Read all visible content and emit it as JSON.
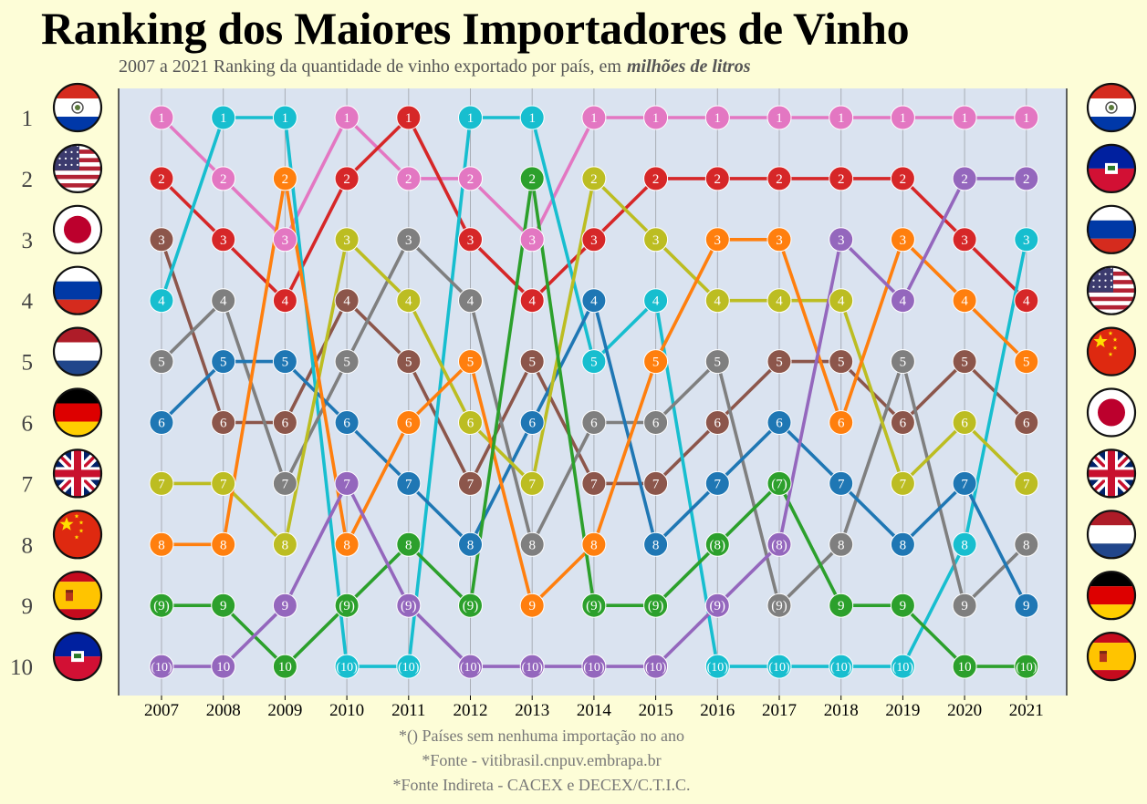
{
  "title": "Ranking dos Maiores Importadores de Vinho",
  "subtitle_text": "2007 a 2021 Ranking da quantidade de vinho exportado por país, em",
  "subtitle_emph": "milhões de litros",
  "footnotes": [
    "*() Países sem nenhuma importação no ano",
    "*Fonte - vitibrasil.cnpuv.embrapa.br",
    "*Fonte Indireta - CACEX e DECEX/C.T.I.C."
  ],
  "colors": {
    "background": "#fdfdd7",
    "plot_background": "#dae3f0",
    "pink": "#e377c2",
    "red": "#d62728",
    "brown": "#8c564b",
    "cyan": "#17becf",
    "gray": "#7f7f7f",
    "blue": "#1f77b4",
    "olive": "#bcbd22",
    "orange": "#ff7f0e",
    "green": "#2ca02c",
    "purple": "#9467bd"
  },
  "chart_data": {
    "type": "line",
    "x": [
      "2007",
      "2008",
      "2009",
      "2010",
      "2011",
      "2012",
      "2013",
      "2014",
      "2015",
      "2016",
      "2017",
      "2018",
      "2019",
      "2020",
      "2021"
    ],
    "y_ticks": [
      "1",
      "2",
      "3",
      "4",
      "5",
      "6",
      "7",
      "8",
      "9",
      "10"
    ],
    "ylim": [
      1,
      10
    ],
    "y_inverted": true,
    "grid": "vertical",
    "left_flags": [
      "paraguay-flag",
      "usa-flag",
      "japan-flag",
      "russia-flag",
      "netherlands-flag",
      "germany-flag",
      "uk-flag",
      "china-flag",
      "spain-flag",
      "haiti-flag"
    ],
    "right_flags": [
      "paraguay-flag",
      "haiti-flag",
      "russia-flag",
      "usa-flag",
      "china-flag",
      "japan-flag",
      "uk-flag",
      "netherlands-flag",
      "germany-flag",
      "spain-flag"
    ],
    "series": [
      {
        "color": "pink",
        "ranks": [
          1,
          2,
          3,
          1,
          2,
          2,
          3,
          1,
          1,
          1,
          1,
          1,
          1,
          1,
          1
        ],
        "labels": [
          "1",
          "2",
          "3",
          "1",
          "2",
          "2",
          "3",
          "1",
          "1",
          "1",
          "1",
          "1",
          "1",
          "1",
          "1"
        ]
      },
      {
        "color": "red",
        "ranks": [
          2,
          3,
          4,
          2,
          1,
          3,
          4,
          3,
          2,
          2,
          2,
          2,
          2,
          3,
          4
        ],
        "labels": [
          "2",
          "3",
          "4",
          "2",
          "1",
          "3",
          "4",
          "3",
          "2",
          "2",
          "2",
          "2",
          "2",
          "3",
          "4"
        ]
      },
      {
        "color": "brown",
        "ranks": [
          3,
          6,
          6,
          4,
          5,
          7,
          5,
          7,
          7,
          6,
          5,
          5,
          6,
          5,
          6
        ],
        "labels": [
          "3",
          "6",
          "6",
          "4",
          "5",
          "7",
          "5",
          "7",
          "7",
          "6",
          "5",
          "5",
          "6",
          "5",
          "6"
        ]
      },
      {
        "color": "cyan",
        "ranks": [
          4,
          1,
          1,
          10,
          10,
          1,
          1,
          5,
          4,
          10,
          10,
          10,
          10,
          8,
          3
        ],
        "labels": [
          "4",
          "1",
          "1",
          "(10)",
          "(10)",
          "1",
          "1",
          "5",
          "4",
          "(10)",
          "(10)",
          "(10)",
          "(10)",
          "8",
          "3"
        ]
      },
      {
        "color": "gray",
        "ranks": [
          5,
          4,
          7,
          5,
          3,
          4,
          8,
          6,
          6,
          5,
          9,
          8,
          5,
          9,
          8
        ],
        "labels": [
          "5",
          "4",
          "7",
          "5",
          "3",
          "4",
          "8",
          "6",
          "6",
          "5",
          "(9)",
          "8",
          "5",
          "9",
          "8"
        ]
      },
      {
        "color": "blue",
        "ranks": [
          6,
          5,
          5,
          6,
          7,
          8,
          6,
          4,
          8,
          7,
          6,
          7,
          8,
          7,
          9
        ],
        "labels": [
          "6",
          "5",
          "5",
          "6",
          "7",
          "8",
          "6",
          "4",
          "8",
          "7",
          "6",
          "7",
          "8",
          "7",
          "9"
        ]
      },
      {
        "color": "olive",
        "ranks": [
          7,
          7,
          8,
          3,
          4,
          6,
          7,
          2,
          3,
          4,
          4,
          4,
          7,
          6,
          7
        ],
        "labels": [
          "7",
          "7",
          "8",
          "3",
          "4",
          "6",
          "7",
          "2",
          "3",
          "4",
          "4",
          "4",
          "7",
          "6",
          "7"
        ]
      },
      {
        "color": "orange",
        "ranks": [
          8,
          8,
          2,
          8,
          6,
          5,
          9,
          8,
          5,
          3,
          3,
          6,
          3,
          4,
          5
        ],
        "labels": [
          "8",
          "8",
          "2",
          "8",
          "6",
          "5",
          "9",
          "8",
          "5",
          "3",
          "3",
          "6",
          "3",
          "4",
          "5"
        ]
      },
      {
        "color": "green",
        "ranks": [
          9,
          9,
          10,
          9,
          8,
          9,
          2,
          9,
          9,
          8,
          7,
          9,
          9,
          10,
          10
        ],
        "labels": [
          "(9)",
          "9",
          "10",
          "(9)",
          "8",
          "(9)",
          "2",
          "(9)",
          "(9)",
          "(8)",
          "(7)",
          "9",
          "9",
          "10",
          "(10)"
        ]
      },
      {
        "color": "purple",
        "ranks": [
          10,
          10,
          9,
          7,
          9,
          10,
          10,
          10,
          10,
          9,
          8,
          3,
          4,
          2,
          2
        ],
        "labels": [
          "(10)",
          "10",
          "9",
          "7",
          "(9)",
          "(10)",
          "(10)",
          "(10)",
          "(10)",
          "(9)",
          "(8)",
          "3",
          "4",
          "2",
          "2"
        ]
      }
    ]
  }
}
